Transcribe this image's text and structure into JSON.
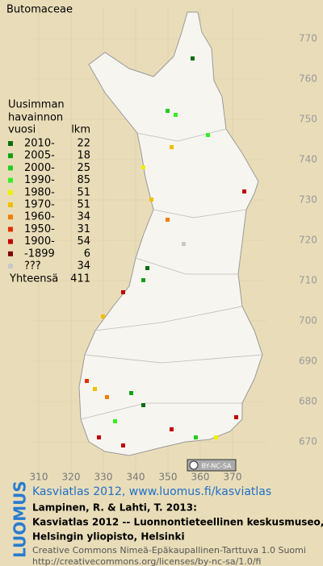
{
  "title": "Butomaceae",
  "legend": {
    "heading": [
      "Uusimman",
      "havainnon",
      "vuosi"
    ],
    "count_header": "lkm",
    "rows": [
      {
        "label": "2010-",
        "count": 22,
        "color": "#0a6e0a"
      },
      {
        "label": "2005-",
        "count": 18,
        "color": "#12a012"
      },
      {
        "label": "2000-",
        "count": 25,
        "color": "#22cc22"
      },
      {
        "label": "1990-",
        "count": 85,
        "color": "#33ee22"
      },
      {
        "label": "1980-",
        "count": 51,
        "color": "#f0f000"
      },
      {
        "label": "1970-",
        "count": 51,
        "color": "#f0c000"
      },
      {
        "label": "1960-",
        "count": 34,
        "color": "#f08000"
      },
      {
        "label": "1950-",
        "count": 31,
        "color": "#e03000"
      },
      {
        "label": "1900-",
        "count": 54,
        "color": "#c00000"
      },
      {
        "label": "-1899",
        "count": 6,
        "color": "#800000"
      },
      {
        "label": "???",
        "count": 34,
        "color": "#c8c8c8"
      }
    ],
    "total": {
      "label": "Yhteensä",
      "count": 411
    }
  },
  "x_ticks": [
    310,
    320,
    330,
    340,
    350,
    360,
    370
  ],
  "y_ticks": [
    770,
    760,
    750,
    740,
    730,
    720,
    710,
    700,
    690,
    680,
    670
  ],
  "badge": "BY-NC-SA",
  "footer": {
    "brand": "LUOMUS",
    "link": "Kasviatlas 2012, www.luomus.fi/kasviatlas",
    "citation": [
      "Lampinen, R. & Lahti, T. 2013:",
      "Kasviatlas 2012 -- Luonnontieteellinen keskusmuseo,",
      "Helsingin yliopisto, Helsinki"
    ],
    "license": [
      "Creative Commons Nimeä-Epäkaupallinen-Tarttuva 1.0 Suomi",
      "http://creativecommons.org/licenses/by-nc-sa/1.0/fi"
    ]
  }
}
